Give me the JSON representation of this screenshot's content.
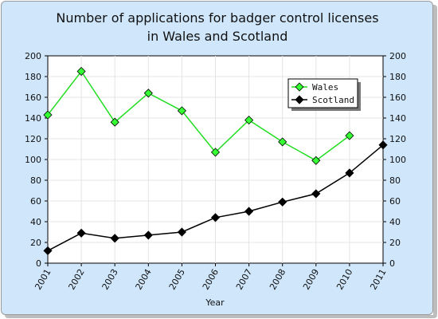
{
  "chart_data": {
    "type": "line",
    "title_lines": [
      "Number of applications for badger control licenses",
      "in Wales and Scotland"
    ],
    "xlabel": "Year",
    "ylabel": "",
    "categories": [
      "2001",
      "2002",
      "2003",
      "2004",
      "2005",
      "2006",
      "2007",
      "2008",
      "2009",
      "2010",
      "2011"
    ],
    "ylim": [
      0,
      200
    ],
    "yticks": [
      0,
      20,
      40,
      60,
      80,
      100,
      120,
      140,
      160,
      180,
      200
    ],
    "grid": true,
    "legend_position": "top-right",
    "series": [
      {
        "name": "Wales",
        "color": "#22dd22",
        "marker_color": "#33ff33",
        "values": [
          143,
          185,
          136,
          164,
          147,
          107,
          138,
          117,
          99,
          123,
          null
        ]
      },
      {
        "name": "Scotland",
        "color": "#000000",
        "marker_color": "#000000",
        "values": [
          12,
          29,
          24,
          27,
          30,
          44,
          50,
          59,
          67,
          87,
          114
        ]
      }
    ]
  }
}
